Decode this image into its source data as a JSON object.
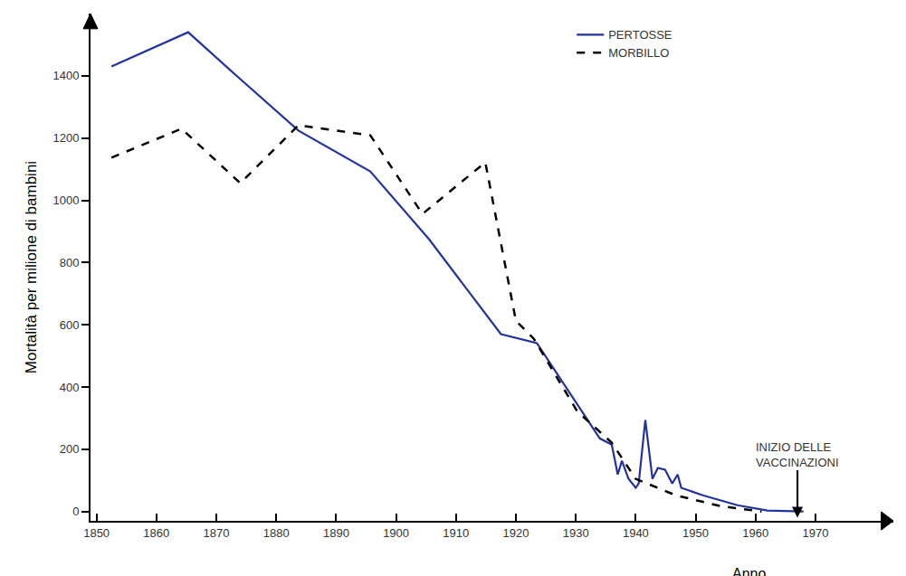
{
  "chart_data": {
    "type": "line",
    "y_label": "Mortalità per milione di bambini",
    "x_label": "Anno",
    "xlim": [
      1849,
      1983
    ],
    "xticks": [
      1850,
      1860,
      1870,
      1880,
      1890,
      1900,
      1910,
      1920,
      1930,
      1940,
      1950,
      1960,
      1970
    ],
    "ylim": [
      -30,
      1600
    ],
    "yticks": [
      0,
      200,
      400,
      600,
      800,
      1000,
      1200,
      1400
    ],
    "grid": false,
    "legend": "top right",
    "series": [
      {
        "name": "PERTOSSE",
        "color": "#2233a0",
        "line_style": "solid",
        "x": [
          1852.5,
          1865.3,
          1873.5,
          1883.7,
          1895.7,
          1905.5,
          1917.5,
          1923.5,
          1934,
          1936,
          1937,
          1937.7,
          1938.8,
          1940,
          1940.5,
          1941.6,
          1942.8,
          1943.7,
          1944.9,
          1946.1,
          1947,
          1947.6,
          1951.2,
          1957,
          1962,
          1968
        ],
        "values": [
          1430,
          1540,
          1398,
          1224,
          1093,
          875,
          570,
          541,
          235,
          215,
          119,
          163,
          105,
          76,
          90,
          294,
          105,
          140,
          134,
          90,
          119,
          76,
          52,
          20,
          3,
          0
        ]
      },
      {
        "name": "MORBILLO",
        "color": "#000000",
        "line_style": "dash",
        "x": [
          1852.5,
          1864.2,
          1874,
          1883.7,
          1895.7,
          1904.4,
          1914.9,
          1920,
          1923,
          1930.2,
          1936,
          1940,
          1946.7,
          1954.2,
          1961
        ],
        "values": [
          1137,
          1230,
          1055,
          1241,
          1209,
          956,
          1122,
          613,
          555,
          323,
          221,
          105,
          52,
          17,
          0
        ]
      }
    ],
    "annotations": [
      {
        "text_lines": [
          "INIZIO DELLE",
          "VACCINAZIONI"
        ],
        "x": 1967,
        "y": -20
      }
    ]
  }
}
